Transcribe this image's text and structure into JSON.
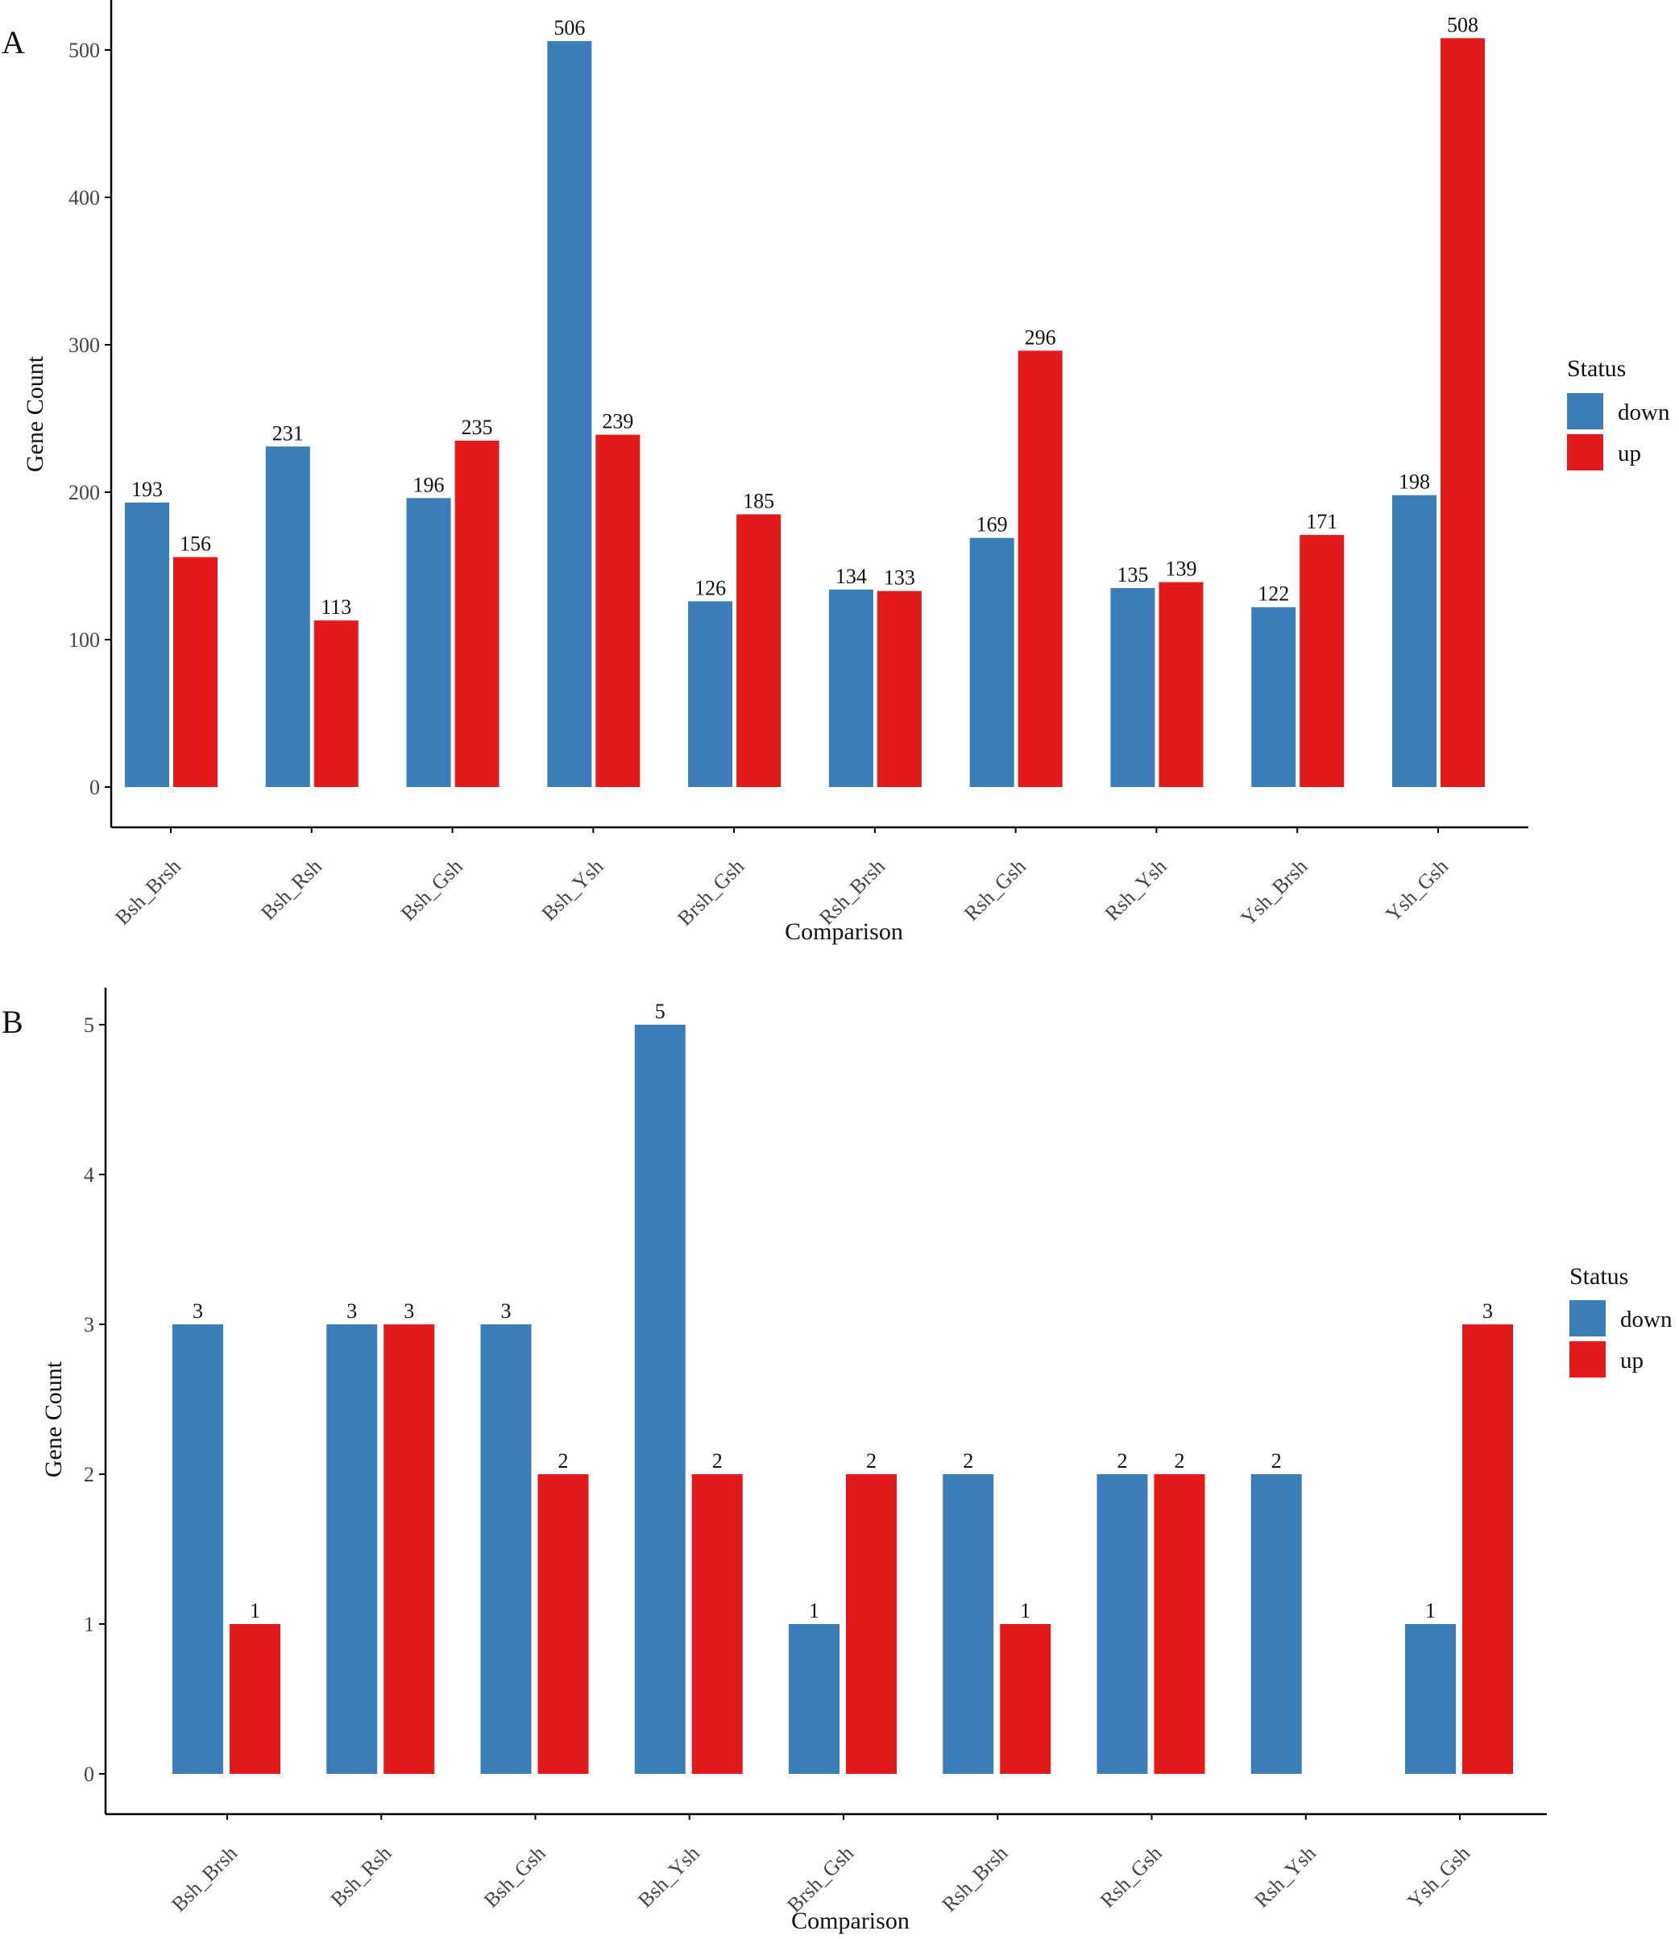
{
  "colors": {
    "down": "#3a7db8",
    "up": "#e31a1c",
    "axis": "#000000"
  },
  "chart_data": [
    {
      "type": "bar",
      "panel": "A",
      "xlabel": "Comparison",
      "ylabel": "Gene Count",
      "ylim": [
        0,
        508
      ],
      "yticks": [
        0,
        100,
        200,
        300,
        400,
        500
      ],
      "categories": [
        "Bsh_Brsh",
        "Bsh_Rsh",
        "Bsh_Gsh",
        "Bsh_Ysh",
        "Brsh_Gsh",
        "Rsh_Brsh",
        "Rsh_Gsh",
        "Rsh_Ysh",
        "Ysh_Brsh",
        "Ysh_Gsh"
      ],
      "series": [
        {
          "name": "down",
          "values": [
            193,
            231,
            196,
            506,
            126,
            134,
            169,
            135,
            122,
            198
          ]
        },
        {
          "name": "up",
          "values": [
            156,
            113,
            235,
            239,
            185,
            133,
            296,
            139,
            171,
            508
          ]
        }
      ],
      "legend": {
        "title": "Status",
        "position": "right",
        "items": [
          "down",
          "up"
        ]
      }
    },
    {
      "type": "bar",
      "panel": "B",
      "xlabel": "Comparison",
      "ylabel": "Gene Count",
      "ylim": [
        0,
        5
      ],
      "yticks": [
        0,
        1,
        2,
        3,
        4,
        5
      ],
      "categories": [
        "Bsh_Brsh",
        "Bsh_Rsh",
        "Bsh_Gsh",
        "Bsh_Ysh",
        "Brsh_Gsh",
        "Rsh_Brsh",
        "Rsh_Gsh",
        "Rsh_Ysh",
        "Ysh_Gsh"
      ],
      "series": [
        {
          "name": "down",
          "values": [
            3,
            3,
            3,
            5,
            1,
            2,
            2,
            2,
            1
          ]
        },
        {
          "name": "up",
          "values": [
            1,
            3,
            2,
            2,
            2,
            1,
            2,
            null,
            3
          ]
        }
      ],
      "legend": {
        "title": "Status",
        "position": "right",
        "items": [
          "down",
          "up"
        ]
      }
    }
  ]
}
